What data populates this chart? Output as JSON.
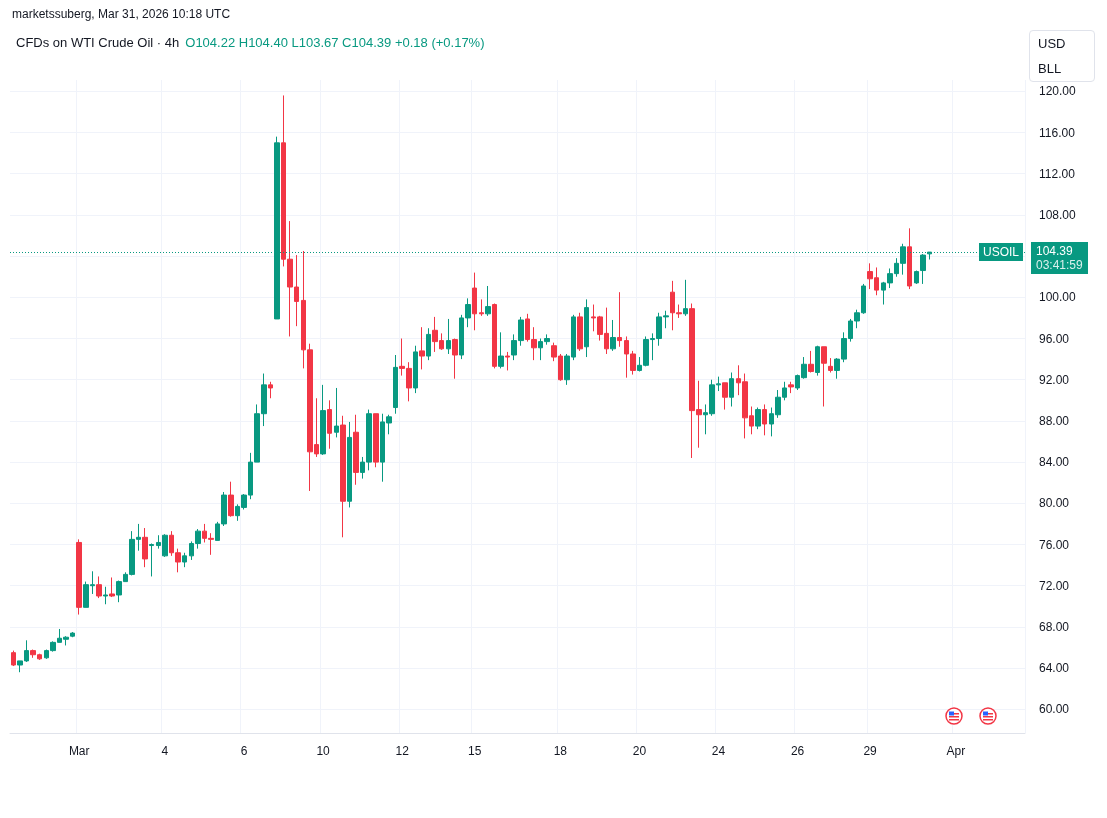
{
  "chart_data": {
    "type": "candlestick",
    "title": "CFDs on WTI Crude Oil · 4h",
    "annotations": [
      "marketssuberg, Mar 31, 2026 10:18 UTC",
      "O104.22 H104.40 L103.67 C104.39 +0.18 (+0.17%)",
      "USD",
      "BLL",
      "USOIL",
      "03:41:59"
    ],
    "categories": [
      null,
      null,
      null,
      null,
      null,
      null,
      null,
      null,
      null,
      null,
      "Mar",
      null,
      null,
      null,
      null,
      null,
      null,
      null,
      null,
      null,
      null,
      null,
      null,
      "4",
      null,
      null,
      null,
      null,
      null,
      null,
      null,
      null,
      null,
      null,
      null,
      "6",
      null,
      null,
      null,
      null,
      null,
      null,
      null,
      null,
      null,
      null,
      null,
      "10",
      null,
      null,
      null,
      null,
      null,
      null,
      null,
      null,
      null,
      null,
      null,
      "12",
      null,
      null,
      null,
      null,
      null,
      null,
      null,
      null,
      null,
      null,
      "15",
      null,
      null,
      null,
      null,
      null,
      null,
      null,
      null,
      null,
      null,
      null,
      null,
      "18",
      null,
      null,
      null,
      null,
      null,
      null,
      null,
      null,
      null,
      null,
      null,
      "20",
      null,
      null,
      null,
      null,
      null,
      null,
      null,
      null,
      null,
      null,
      null,
      "24",
      null,
      null,
      null,
      null,
      null,
      null,
      null,
      null,
      null,
      null,
      null,
      "26",
      null,
      null,
      null,
      null,
      null,
      null,
      null,
      null,
      null,
      null,
      "29",
      null,
      null,
      null,
      null,
      null,
      null,
      null,
      null,
      null,
      null,
      null,
      null,
      "Apr",
      null,
      null,
      null,
      null,
      null,
      null,
      null,
      null,
      null,
      null
    ],
    "ohlc": [
      [
        65.5,
        65.7,
        64.2,
        64.3
      ],
      [
        64.3,
        64.7,
        63.6,
        64.7
      ],
      [
        64.7,
        66.7,
        64.6,
        65.7
      ],
      [
        65.7,
        65.8,
        65.0,
        65.3
      ],
      [
        65.3,
        65.4,
        64.8,
        64.9
      ],
      [
        65.0,
        65.8,
        64.9,
        65.7
      ],
      [
        65.7,
        66.6,
        65.6,
        66.5
      ],
      [
        66.5,
        67.8,
        66.5,
        66.9
      ],
      [
        66.8,
        67.1,
        66.2,
        67.0
      ],
      [
        67.1,
        67.5,
        67.0,
        67.4
      ],
      [
        76.2,
        76.5,
        69.2,
        69.9
      ],
      [
        69.9,
        72.4,
        69.9,
        72.1
      ],
      [
        72.0,
        73.4,
        71.2,
        72.1
      ],
      [
        72.1,
        72.9,
        70.8,
        71.0
      ],
      [
        71.0,
        71.9,
        70.2,
        71.1
      ],
      [
        71.2,
        72.8,
        70.9,
        71.0
      ],
      [
        71.1,
        72.5,
        70.4,
        72.4
      ],
      [
        72.4,
        73.3,
        72.4,
        73.1
      ],
      [
        73.1,
        77.3,
        73.0,
        76.5
      ],
      [
        76.5,
        78.0,
        75.4,
        76.7
      ],
      [
        76.7,
        77.6,
        73.8,
        74.6
      ],
      [
        75.9,
        76.1,
        72.9,
        76.0
      ],
      [
        75.9,
        76.9,
        75.6,
        76.2
      ],
      [
        74.9,
        77.0,
        74.8,
        76.9
      ],
      [
        76.9,
        77.3,
        74.9,
        75.2
      ],
      [
        75.2,
        75.6,
        73.3,
        74.3
      ],
      [
        74.3,
        75.2,
        73.8,
        74.9
      ],
      [
        74.9,
        76.3,
        74.5,
        76.1
      ],
      [
        76.1,
        77.5,
        75.6,
        77.3
      ],
      [
        77.3,
        78.0,
        76.2,
        76.6
      ],
      [
        76.6,
        77.1,
        75.0,
        76.5
      ],
      [
        76.4,
        78.2,
        76.4,
        78.0
      ],
      [
        78.0,
        81.1,
        77.8,
        80.8
      ],
      [
        80.8,
        82.1,
        78.7,
        78.8
      ],
      [
        78.8,
        79.9,
        78.3,
        79.7
      ],
      [
        79.6,
        80.9,
        79.4,
        80.8
      ],
      [
        80.8,
        84.9,
        80.4,
        84.0
      ],
      [
        84.0,
        89.6,
        84.0,
        88.7
      ],
      [
        88.7,
        92.6,
        87.5,
        91.5
      ],
      [
        91.5,
        91.8,
        90.2,
        91.2
      ],
      [
        97.9,
        115.6,
        97.9,
        115.0
      ],
      [
        115.0,
        119.6,
        103.0,
        103.7
      ],
      [
        103.7,
        107.4,
        96.2,
        101.0
      ],
      [
        101.0,
        104.1,
        97.2,
        99.6
      ],
      [
        99.7,
        104.5,
        93.1,
        94.9
      ],
      [
        94.9,
        95.5,
        81.2,
        85.0
      ],
      [
        85.7,
        90.2,
        84.5,
        84.8
      ],
      [
        84.8,
        91.5,
        84.7,
        89.0
      ],
      [
        89.1,
        90.0,
        85.3,
        86.8
      ],
      [
        86.9,
        91.2,
        86.4,
        87.5
      ],
      [
        87.6,
        88.5,
        76.7,
        80.2
      ],
      [
        80.2,
        87.9,
        79.6,
        86.4
      ],
      [
        86.9,
        88.6,
        81.8,
        83.0
      ],
      [
        83.0,
        84.5,
        82.4,
        84.0
      ],
      [
        84.0,
        89.1,
        83.2,
        88.7
      ],
      [
        88.7,
        88.7,
        83.5,
        84.0
      ],
      [
        84.0,
        88.7,
        82.1,
        87.9
      ],
      [
        87.8,
        88.6,
        86.7,
        88.4
      ],
      [
        89.3,
        94.4,
        88.7,
        93.2
      ],
      [
        93.3,
        96.0,
        92.4,
        93.1
      ],
      [
        93.1,
        93.7,
        89.9,
        91.2
      ],
      [
        91.2,
        95.3,
        90.7,
        94.7
      ],
      [
        94.8,
        97.1,
        93.0,
        94.3
      ],
      [
        94.3,
        97.0,
        93.9,
        96.4
      ],
      [
        96.8,
        98.1,
        94.7,
        95.7
      ],
      [
        95.8,
        96.5,
        94.9,
        95.0
      ],
      [
        95.0,
        97.9,
        94.5,
        95.8
      ],
      [
        95.9,
        96.0,
        92.1,
        94.4
      ],
      [
        94.4,
        98.3,
        94.0,
        98.0
      ],
      [
        98.0,
        99.9,
        97.1,
        99.3
      ],
      [
        100.9,
        102.4,
        96.8,
        98.4
      ],
      [
        98.5,
        99.8,
        98.2,
        98.4
      ],
      [
        98.4,
        101.1,
        98.2,
        99.1
      ],
      [
        99.3,
        99.4,
        93.1,
        93.3
      ],
      [
        93.3,
        96.6,
        93.1,
        94.3
      ],
      [
        94.3,
        94.7,
        92.9,
        94.2
      ],
      [
        94.4,
        96.4,
        93.9,
        95.8
      ],
      [
        95.8,
        98.1,
        95.3,
        97.8
      ],
      [
        97.9,
        98.4,
        95.7,
        95.9
      ],
      [
        95.9,
        97.1,
        93.9,
        95.1
      ],
      [
        95.1,
        96.0,
        93.9,
        95.7
      ],
      [
        95.7,
        96.4,
        95.4,
        96.0
      ],
      [
        95.3,
        95.6,
        93.8,
        94.2
      ],
      [
        94.3,
        94.5,
        91.9,
        92.0
      ],
      [
        92.0,
        94.5,
        91.5,
        94.3
      ],
      [
        94.2,
        98.3,
        93.9,
        98.1
      ],
      [
        98.1,
        98.5,
        94.8,
        95.0
      ],
      [
        95.2,
        99.8,
        94.2,
        99.0
      ],
      [
        98.1,
        99.3,
        96.7,
        98.0
      ],
      [
        98.1,
        98.2,
        95.8,
        96.4
      ],
      [
        96.5,
        99.0,
        94.5,
        95.0
      ],
      [
        95.0,
        97.8,
        94.8,
        96.1
      ],
      [
        96.1,
        100.5,
        95.2,
        95.8
      ],
      [
        95.8,
        96.2,
        92.2,
        94.5
      ],
      [
        94.5,
        94.8,
        92.5,
        92.9
      ],
      [
        92.9,
        94.2,
        92.8,
        93.4
      ],
      [
        93.4,
        96.2,
        93.3,
        95.9
      ],
      [
        95.9,
        96.5,
        93.9,
        96.0
      ],
      [
        96.0,
        98.5,
        95.3,
        98.1
      ],
      [
        98.1,
        98.7,
        97.0,
        98.2
      ],
      [
        100.5,
        101.6,
        96.8,
        98.5
      ],
      [
        98.5,
        99.3,
        98.0,
        98.4
      ],
      [
        98.4,
        101.7,
        98.2,
        98.9
      ],
      [
        98.9,
        99.4,
        84.4,
        89.0
      ],
      [
        89.1,
        91.9,
        85.4,
        88.6
      ],
      [
        88.6,
        89.6,
        86.7,
        88.8
      ],
      [
        88.7,
        92.0,
        88.5,
        91.5
      ],
      [
        91.5,
        92.3,
        90.9,
        91.6
      ],
      [
        91.7,
        91.7,
        89.1,
        90.3
      ],
      [
        90.3,
        92.7,
        89.4,
        92.1
      ],
      [
        92.1,
        93.4,
        90.5,
        91.7
      ],
      [
        91.8,
        92.6,
        86.3,
        88.3
      ],
      [
        88.5,
        89.4,
        86.7,
        87.5
      ],
      [
        87.5,
        89.3,
        87.2,
        89.1
      ],
      [
        89.1,
        89.6,
        86.6,
        87.7
      ],
      [
        87.7,
        89.3,
        86.5,
        88.7
      ],
      [
        88.6,
        91.0,
        88.3,
        90.3
      ],
      [
        90.3,
        91.8,
        90.0,
        91.2
      ],
      [
        91.5,
        91.8,
        90.7,
        91.3
      ],
      [
        91.2,
        92.5,
        91.0,
        92.4
      ],
      [
        92.2,
        94.2,
        92.1,
        93.5
      ],
      [
        93.5,
        94.8,
        92.7,
        92.8
      ],
      [
        92.7,
        95.3,
        92.4,
        95.2
      ],
      [
        95.2,
        95.2,
        89.4,
        93.6
      ],
      [
        93.3,
        94.1,
        92.7,
        92.9
      ],
      [
        92.9,
        94.1,
        92.1,
        94.0
      ],
      [
        94.0,
        96.6,
        93.7,
        96.0
      ],
      [
        96.0,
        97.9,
        95.7,
        97.7
      ],
      [
        97.7,
        98.8,
        97.0,
        98.5
      ],
      [
        98.5,
        101.3,
        98.4,
        101.1
      ],
      [
        102.5,
        103.3,
        100.8,
        101.8
      ],
      [
        101.9,
        102.9,
        100.2,
        100.7
      ],
      [
        100.7,
        101.5,
        99.3,
        101.4
      ],
      [
        101.4,
        102.8,
        100.9,
        102.3
      ],
      [
        102.3,
        103.8,
        102.0,
        103.3
      ],
      [
        103.3,
        105.2,
        102.2,
        104.9
      ],
      [
        104.9,
        106.7,
        100.8,
        101.1
      ],
      [
        101.4,
        102.6,
        101.3,
        102.5
      ],
      [
        102.6,
        104.2,
        101.3,
        104.1
      ],
      [
        104.22,
        104.4,
        103.67,
        104.39
      ],
      null,
      null,
      null,
      null,
      null,
      null,
      null,
      null,
      null,
      null,
      null,
      null,
      null,
      null
    ],
    "colors": [
      "#f23645",
      "#089981",
      "#089981",
      "#f23645",
      "#f23645",
      "#089981",
      "#089981",
      "#089981",
      "#089981",
      "#089981",
      "#f23645",
      "#089981",
      "#089981",
      "#f23645",
      "#089981",
      "#f23645",
      "#089981",
      "#089981",
      "#089981",
      "#089981",
      "#f23645",
      "#089981",
      "#089981",
      "#089981",
      "#f23645",
      "#f23645",
      "#089981",
      "#089981",
      "#089981",
      "#f23645",
      "#f23645",
      "#089981",
      "#089981",
      "#f23645",
      "#089981",
      "#089981",
      "#089981",
      "#089981",
      "#089981",
      "#f23645",
      "#089981",
      "#f23645",
      "#f23645",
      "#f23645",
      "#f23645",
      "#f23645",
      "#f23645",
      "#089981",
      "#f23645",
      "#089981",
      "#f23645",
      "#089981",
      "#f23645",
      "#089981",
      "#089981",
      "#f23645",
      "#089981",
      "#089981",
      "#089981",
      "#f23645",
      "#f23645",
      "#089981",
      "#f23645",
      "#089981",
      "#f23645",
      "#f23645",
      "#089981",
      "#f23645",
      "#089981",
      "#089981",
      "#f23645",
      "#f23645",
      "#089981",
      "#f23645",
      "#089981",
      "#f23645",
      "#089981",
      "#089981",
      "#f23645",
      "#f23645",
      "#089981",
      "#089981",
      "#f23645",
      "#f23645",
      "#089981",
      "#089981",
      "#f23645",
      "#089981",
      "#f23645",
      "#f23645",
      "#f23645",
      "#089981",
      "#f23645",
      "#f23645",
      "#f23645",
      "#089981",
      "#089981",
      "#089981",
      "#089981",
      "#089981",
      "#f23645",
      "#f23645",
      "#089981",
      "#f23645",
      "#f23645",
      "#089981",
      "#089981",
      "#089981",
      "#f23645",
      "#089981",
      "#f23645",
      "#f23645",
      "#f23645",
      "#089981",
      "#f23645",
      "#089981",
      "#089981",
      "#089981",
      "#f23645",
      "#089981",
      "#089981",
      "#f23645",
      "#089981",
      "#f23645",
      "#f23645",
      "#089981",
      "#089981",
      "#089981",
      "#089981",
      "#089981",
      "#f23645",
      "#f23645",
      "#089981",
      "#089981",
      "#089981",
      "#089981",
      "#f23645",
      "#089981",
      "#089981",
      "#089981",
      null,
      null,
      null,
      null,
      null,
      null,
      null,
      null,
      null,
      null,
      null,
      null,
      null,
      null
    ],
    "ylim": [
      57.7,
      121.1
    ],
    "yticks": [
      {
        "value": 60,
        "label": "60.00"
      },
      {
        "value": 64,
        "label": "64.00"
      },
      {
        "value": 68,
        "label": "68.00"
      },
      {
        "value": 72,
        "label": "72.00"
      },
      {
        "value": 76,
        "label": "76.00"
      },
      {
        "value": 80,
        "label": "80.00"
      },
      {
        "value": 84,
        "label": "84.00"
      },
      {
        "value": 88,
        "label": "88.00"
      },
      {
        "value": 92,
        "label": "92.00"
      },
      {
        "value": 96,
        "label": "96.00"
      },
      {
        "value": 100,
        "label": "100.00"
      },
      {
        "value": 104,
        "label": null
      },
      {
        "value": 108,
        "label": "108.00"
      },
      {
        "value": 112,
        "label": "112.00"
      },
      {
        "value": 116,
        "label": "116.00"
      },
      {
        "value": 120,
        "label": "120.00"
      }
    ],
    "ref_lines": [
      {
        "axis": "y",
        "value": 104.39,
        "label": "104.39",
        "color": "#089981",
        "line_style": "dotted"
      }
    ],
    "grid": true
  }
}
